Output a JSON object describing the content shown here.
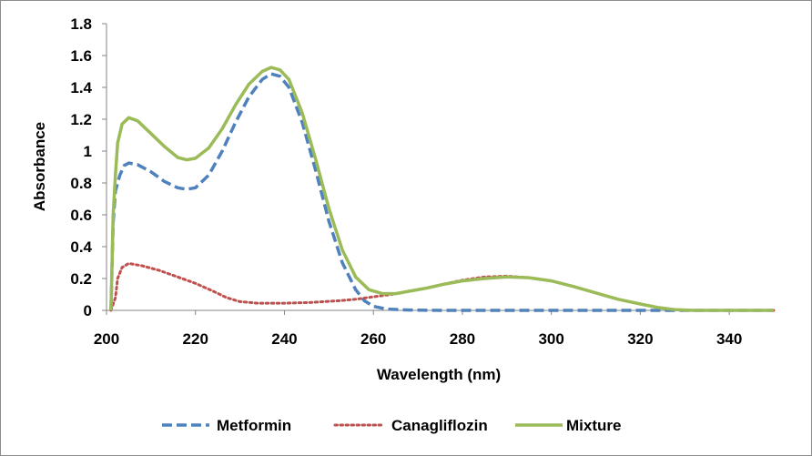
{
  "chart_data": {
    "type": "line",
    "title": "",
    "xlabel": "Wavelength (nm)",
    "ylabel": "Absorbance",
    "xlim": [
      200,
      350
    ],
    "ylim": [
      0,
      1.8
    ],
    "xticks": [
      "200",
      "220",
      "240",
      "260",
      "280",
      "300",
      "320",
      "340"
    ],
    "yticks": [
      "0",
      "0.2",
      "0.4",
      "0.6",
      "0.8",
      "1",
      "1.2",
      "1.4",
      "1.6",
      "1.8"
    ],
    "grid": false,
    "legend_position": "bottom",
    "series": [
      {
        "name": "Metformin",
        "color": "#4F81BD",
        "style": "dashed",
        "points": [
          [
            201,
            0.0
          ],
          [
            201.5,
            0.55
          ],
          [
            202,
            0.75
          ],
          [
            203,
            0.85
          ],
          [
            204,
            0.91
          ],
          [
            205,
            0.925
          ],
          [
            207,
            0.915
          ],
          [
            210,
            0.87
          ],
          [
            213,
            0.81
          ],
          [
            216,
            0.77
          ],
          [
            218,
            0.76
          ],
          [
            220,
            0.77
          ],
          [
            223,
            0.85
          ],
          [
            226,
            1.0
          ],
          [
            229,
            1.18
          ],
          [
            232,
            1.34
          ],
          [
            235,
            1.45
          ],
          [
            237,
            1.485
          ],
          [
            239,
            1.47
          ],
          [
            241,
            1.4
          ],
          [
            244,
            1.18
          ],
          [
            247,
            0.88
          ],
          [
            250,
            0.56
          ],
          [
            253,
            0.3
          ],
          [
            256,
            0.13
          ],
          [
            258,
            0.06
          ],
          [
            260,
            0.025
          ],
          [
            263,
            0.008
          ],
          [
            268,
            0.002
          ],
          [
            275,
            0.0
          ],
          [
            350,
            0.0
          ]
        ]
      },
      {
        "name": "Canagliflozin",
        "color": "#C0504D",
        "style": "dotted",
        "points": [
          [
            201,
            0.0
          ],
          [
            202,
            0.08
          ],
          [
            202.5,
            0.2
          ],
          [
            203.5,
            0.27
          ],
          [
            205,
            0.295
          ],
          [
            208,
            0.28
          ],
          [
            212,
            0.25
          ],
          [
            216,
            0.21
          ],
          [
            220,
            0.17
          ],
          [
            224,
            0.12
          ],
          [
            227,
            0.08
          ],
          [
            230,
            0.055
          ],
          [
            234,
            0.045
          ],
          [
            240,
            0.045
          ],
          [
            246,
            0.05
          ],
          [
            252,
            0.06
          ],
          [
            256,
            0.07
          ],
          [
            260,
            0.085
          ],
          [
            264,
            0.1
          ],
          [
            268,
            0.12
          ],
          [
            272,
            0.14
          ],
          [
            276,
            0.165
          ],
          [
            280,
            0.19
          ],
          [
            285,
            0.21
          ],
          [
            290,
            0.215
          ],
          [
            295,
            0.205
          ],
          [
            300,
            0.185
          ],
          [
            305,
            0.15
          ],
          [
            310,
            0.11
          ],
          [
            315,
            0.07
          ],
          [
            320,
            0.04
          ],
          [
            324,
            0.018
          ],
          [
            328,
            0.004
          ],
          [
            332,
            0.0
          ],
          [
            350,
            0.0
          ]
        ]
      },
      {
        "name": "Mixture",
        "color": "#9BBB59",
        "style": "solid",
        "points": [
          [
            201,
            0.0
          ],
          [
            201.5,
            0.6
          ],
          [
            202,
            0.85
          ],
          [
            202.5,
            1.05
          ],
          [
            203.5,
            1.17
          ],
          [
            205,
            1.21
          ],
          [
            207,
            1.19
          ],
          [
            210,
            1.11
          ],
          [
            213,
            1.03
          ],
          [
            216,
            0.96
          ],
          [
            218,
            0.945
          ],
          [
            220,
            0.955
          ],
          [
            223,
            1.02
          ],
          [
            226,
            1.14
          ],
          [
            229,
            1.29
          ],
          [
            232,
            1.42
          ],
          [
            235,
            1.5
          ],
          [
            237,
            1.525
          ],
          [
            239,
            1.51
          ],
          [
            241,
            1.45
          ],
          [
            244,
            1.24
          ],
          [
            247,
            0.95
          ],
          [
            250,
            0.64
          ],
          [
            253,
            0.38
          ],
          [
            256,
            0.21
          ],
          [
            259,
            0.13
          ],
          [
            262,
            0.105
          ],
          [
            265,
            0.105
          ],
          [
            268,
            0.12
          ],
          [
            272,
            0.14
          ],
          [
            276,
            0.165
          ],
          [
            280,
            0.185
          ],
          [
            285,
            0.2
          ],
          [
            290,
            0.21
          ],
          [
            295,
            0.205
          ],
          [
            300,
            0.185
          ],
          [
            305,
            0.15
          ],
          [
            310,
            0.11
          ],
          [
            315,
            0.07
          ],
          [
            320,
            0.04
          ],
          [
            324,
            0.018
          ],
          [
            328,
            0.004
          ],
          [
            332,
            0.0
          ],
          [
            350,
            0.0
          ]
        ]
      }
    ]
  }
}
